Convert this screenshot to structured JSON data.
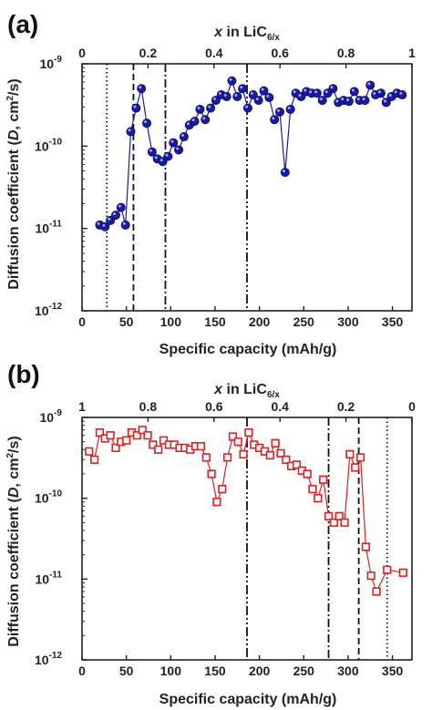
{
  "chart_data": [
    {
      "panel_label": "(a)",
      "type": "scatter",
      "xlabel": "Specific capacity (mAh/g)",
      "ylabel_text": "Diffusion coefficient (",
      "ylabel_symbol": "D",
      "ylabel_unit": ", cm",
      "ylabel_exp": "2",
      "ylabel_tail": "/s)",
      "top_xlabel_symbol": "x",
      "top_xlabel_text": " in LiC",
      "top_xlabel_sub": "6/x",
      "xlim": [
        0,
        372
      ],
      "ylim_log10": [
        -12,
        -9
      ],
      "y_scale": "log",
      "xticks": [
        "0",
        "50",
        "100",
        "150",
        "200",
        "250",
        "300",
        "350"
      ],
      "xtick_values": [
        0,
        50,
        100,
        150,
        200,
        250,
        300,
        350
      ],
      "top_ticks": [
        "0",
        "0.2",
        "0.4",
        "0.6",
        "0.8",
        "1"
      ],
      "top_tick_values": [
        0,
        0.2,
        0.4,
        0.6,
        0.8,
        1.0
      ],
      "top_axis_direction": "increasing",
      "yticks": [
        "10",
        "10",
        "10",
        "10"
      ],
      "ytick_exps": [
        "-12",
        "-11",
        "-10",
        "-9"
      ],
      "ytick_values": [
        -12,
        -11,
        -10,
        -9
      ],
      "vlines": [
        {
          "x": 28,
          "style": "dotted"
        },
        {
          "x": 58,
          "style": "dashed"
        },
        {
          "x": 94,
          "style": "dashdot"
        },
        {
          "x": 186,
          "style": "dashdotdot"
        }
      ],
      "series": [
        {
          "marker": "filled-sphere",
          "color": "#1a1aa0",
          "x": [
            20,
            26,
            32,
            38,
            44,
            49,
            55,
            61,
            67,
            73,
            79,
            85,
            91,
            97,
            103,
            109,
            115,
            121,
            127,
            133,
            139,
            145,
            151,
            157,
            163,
            169,
            175,
            181,
            187,
            193,
            199,
            205,
            211,
            217,
            223,
            229,
            235,
            241,
            247,
            253,
            259,
            265,
            271,
            277,
            283,
            289,
            295,
            301,
            307,
            313,
            319,
            325,
            331,
            337,
            343,
            349,
            355,
            361
          ],
          "y": [
            1.1e-11,
            1.05e-11,
            1.25e-11,
            1.45e-11,
            1.8e-11,
            1.1e-11,
            1.5e-10,
            2.9e-10,
            5e-10,
            1.9e-10,
            8.5e-11,
            7e-11,
            6.5e-11,
            7.5e-11,
            1.1e-10,
            9e-11,
            1.3e-10,
            1.8e-10,
            2e-10,
            2.8e-10,
            2.1e-10,
            2.9e-10,
            3.6e-10,
            4.2e-10,
            4e-10,
            6.2e-10,
            4e-10,
            5e-10,
            2.9e-10,
            4.2e-10,
            3.6e-10,
            4.7e-10,
            3.9e-10,
            2.1e-10,
            2.6e-10,
            4.8e-11,
            2.8e-10,
            4.4e-10,
            4e-10,
            4.6e-10,
            4.4e-10,
            4.4e-10,
            3.6e-10,
            4.4e-10,
            5e-10,
            3.4e-10,
            3.6e-10,
            3.5e-10,
            4.6e-10,
            3.6e-10,
            3.6e-10,
            5.5e-10,
            4.2e-10,
            4.4e-10,
            3.4e-10,
            4e-10,
            4.4e-10,
            4.2e-10
          ]
        }
      ]
    },
    {
      "panel_label": "(b)",
      "type": "scatter",
      "xlabel": "Specific capacity (mAh/g)",
      "ylabel_text": "Diffusion coefficient (",
      "ylabel_symbol": "D",
      "ylabel_unit": ", cm",
      "ylabel_exp": "2",
      "ylabel_tail": "/s)",
      "top_xlabel_symbol": "x",
      "top_xlabel_text": " in LiC",
      "top_xlabel_sub": "6/x",
      "xlim": [
        0,
        372
      ],
      "ylim_log10": [
        -12,
        -9
      ],
      "y_scale": "log",
      "xticks": [
        "0",
        "50",
        "100",
        "150",
        "200",
        "250",
        "300",
        "350"
      ],
      "xtick_values": [
        0,
        50,
        100,
        150,
        200,
        250,
        300,
        350
      ],
      "top_ticks": [
        "1",
        "0.8",
        "0.6",
        "0.4",
        "0.2",
        "0"
      ],
      "top_tick_values": [
        1.0,
        0.8,
        0.6,
        0.4,
        0.2,
        0
      ],
      "top_axis_direction": "decreasing",
      "yticks": [
        "10",
        "10",
        "10",
        "10"
      ],
      "ytick_exps": [
        "-12",
        "-11",
        "-10",
        "-9"
      ],
      "ytick_values": [
        -12,
        -11,
        -10,
        -9
      ],
      "vlines": [
        {
          "x": 186,
          "style": "dashdotdot"
        },
        {
          "x": 278,
          "style": "dashdot"
        },
        {
          "x": 312,
          "style": "dashed"
        },
        {
          "x": 344,
          "style": "dotted"
        }
      ],
      "series": [
        {
          "marker": "open-square",
          "color": "#e02020",
          "x": [
            8,
            14,
            20,
            26,
            32,
            38,
            44,
            50,
            56,
            62,
            68,
            74,
            80,
            86,
            92,
            98,
            104,
            110,
            116,
            122,
            128,
            134,
            140,
            146,
            152,
            158,
            164,
            170,
            176,
            182,
            188,
            194,
            200,
            206,
            212,
            218,
            224,
            230,
            236,
            242,
            248,
            254,
            260,
            266,
            272,
            278,
            284,
            290,
            296,
            302,
            308,
            314,
            320,
            326,
            332,
            344,
            362
          ],
          "y": [
            3.8e-10,
            3e-10,
            6.5e-10,
            5.5e-10,
            6e-10,
            4.2e-10,
            5e-10,
            5.2e-10,
            6.5e-10,
            6e-10,
            7e-10,
            6e-10,
            4.6e-10,
            4e-10,
            5.2e-10,
            4.6e-10,
            4.6e-10,
            4.2e-10,
            4.2e-10,
            4e-10,
            4.4e-10,
            4.4e-10,
            3.2e-10,
            2e-10,
            9e-11,
            1.3e-10,
            3.2e-10,
            5.8e-10,
            5e-10,
            3.5e-10,
            6.5e-10,
            4.6e-10,
            4.2e-10,
            3.8e-10,
            3.4e-10,
            4.8e-10,
            3.6e-10,
            3e-10,
            2.5e-10,
            2.6e-10,
            2.2e-10,
            2e-10,
            1.3e-10,
            1e-10,
            1.7e-10,
            6e-11,
            5e-11,
            6e-11,
            5e-11,
            3.5e-10,
            2.4e-10,
            3.2e-10,
            2.5e-11,
            1.1e-11,
            7e-12,
            1.3e-11,
            1.2e-11
          ]
        }
      ]
    }
  ]
}
